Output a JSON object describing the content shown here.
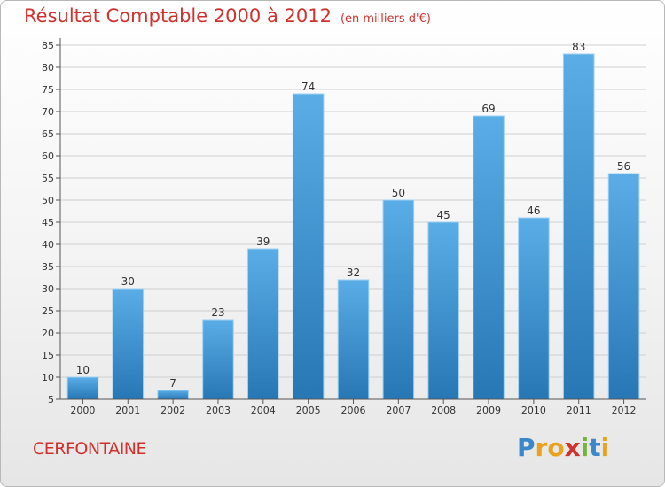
{
  "header": {
    "title": "Résultat Comptable 2000 à 2012",
    "subtitle": "(en milliers d'€)"
  },
  "commune": "CERFONTAINE",
  "logo": {
    "letters": [
      "P",
      "r",
      "o",
      "x",
      "i",
      "t",
      "i"
    ]
  },
  "colors": {
    "bar_top": "#5aade6",
    "bar_bottom": "#2777b5",
    "title": "#d0312d",
    "grid": "#cfcfcf"
  },
  "chart_data": {
    "type": "bar",
    "title": "Résultat Comptable 2000 à 2012",
    "subtitle": "(en milliers d'€)",
    "xlabel": "",
    "ylabel": "",
    "categories": [
      "2000",
      "2001",
      "2002",
      "2003",
      "2004",
      "2005",
      "2006",
      "2007",
      "2008",
      "2009",
      "2010",
      "2011",
      "2012"
    ],
    "values": [
      10,
      30,
      7,
      23,
      39,
      74,
      32,
      50,
      45,
      69,
      46,
      83,
      56
    ],
    "ylim": [
      5,
      85
    ],
    "yticks": [
      5,
      10,
      15,
      20,
      25,
      30,
      35,
      40,
      45,
      50,
      55,
      60,
      65,
      70,
      75,
      80,
      85
    ],
    "grid": true,
    "legend": "none"
  }
}
